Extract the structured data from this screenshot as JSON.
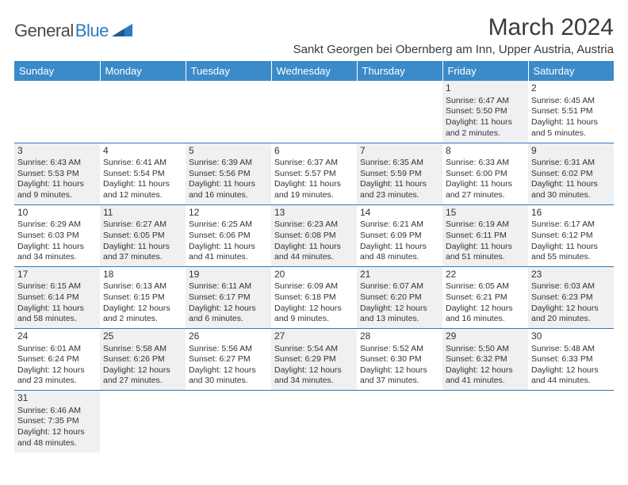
{
  "logo": {
    "part1": "General",
    "part2": "Blue"
  },
  "title": "March 2024",
  "location": "Sankt Georgen bei Obernberg am Inn, Upper Austria, Austria",
  "colors": {
    "header_bg": "#3b8bc9",
    "header_text": "#ffffff",
    "row_border": "#2b7bbf",
    "shade": "#eef0f2",
    "logo_gray": "#4a4a4a",
    "logo_blue": "#2b7bbf"
  },
  "weekdays": [
    "Sunday",
    "Monday",
    "Tuesday",
    "Wednesday",
    "Thursday",
    "Friday",
    "Saturday"
  ],
  "weeks": [
    [
      null,
      null,
      null,
      null,
      null,
      {
        "day": "1",
        "sunrise": "Sunrise: 6:47 AM",
        "sunset": "Sunset: 5:50 PM",
        "daylight": "Daylight: 11 hours and 2 minutes."
      },
      {
        "day": "2",
        "sunrise": "Sunrise: 6:45 AM",
        "sunset": "Sunset: 5:51 PM",
        "daylight": "Daylight: 11 hours and 5 minutes."
      }
    ],
    [
      {
        "day": "3",
        "sunrise": "Sunrise: 6:43 AM",
        "sunset": "Sunset: 5:53 PM",
        "daylight": "Daylight: 11 hours and 9 minutes."
      },
      {
        "day": "4",
        "sunrise": "Sunrise: 6:41 AM",
        "sunset": "Sunset: 5:54 PM",
        "daylight": "Daylight: 11 hours and 12 minutes."
      },
      {
        "day": "5",
        "sunrise": "Sunrise: 6:39 AM",
        "sunset": "Sunset: 5:56 PM",
        "daylight": "Daylight: 11 hours and 16 minutes."
      },
      {
        "day": "6",
        "sunrise": "Sunrise: 6:37 AM",
        "sunset": "Sunset: 5:57 PM",
        "daylight": "Daylight: 11 hours and 19 minutes."
      },
      {
        "day": "7",
        "sunrise": "Sunrise: 6:35 AM",
        "sunset": "Sunset: 5:59 PM",
        "daylight": "Daylight: 11 hours and 23 minutes."
      },
      {
        "day": "8",
        "sunrise": "Sunrise: 6:33 AM",
        "sunset": "Sunset: 6:00 PM",
        "daylight": "Daylight: 11 hours and 27 minutes."
      },
      {
        "day": "9",
        "sunrise": "Sunrise: 6:31 AM",
        "sunset": "Sunset: 6:02 PM",
        "daylight": "Daylight: 11 hours and 30 minutes."
      }
    ],
    [
      {
        "day": "10",
        "sunrise": "Sunrise: 6:29 AM",
        "sunset": "Sunset: 6:03 PM",
        "daylight": "Daylight: 11 hours and 34 minutes."
      },
      {
        "day": "11",
        "sunrise": "Sunrise: 6:27 AM",
        "sunset": "Sunset: 6:05 PM",
        "daylight": "Daylight: 11 hours and 37 minutes."
      },
      {
        "day": "12",
        "sunrise": "Sunrise: 6:25 AM",
        "sunset": "Sunset: 6:06 PM",
        "daylight": "Daylight: 11 hours and 41 minutes."
      },
      {
        "day": "13",
        "sunrise": "Sunrise: 6:23 AM",
        "sunset": "Sunset: 6:08 PM",
        "daylight": "Daylight: 11 hours and 44 minutes."
      },
      {
        "day": "14",
        "sunrise": "Sunrise: 6:21 AM",
        "sunset": "Sunset: 6:09 PM",
        "daylight": "Daylight: 11 hours and 48 minutes."
      },
      {
        "day": "15",
        "sunrise": "Sunrise: 6:19 AM",
        "sunset": "Sunset: 6:11 PM",
        "daylight": "Daylight: 11 hours and 51 minutes."
      },
      {
        "day": "16",
        "sunrise": "Sunrise: 6:17 AM",
        "sunset": "Sunset: 6:12 PM",
        "daylight": "Daylight: 11 hours and 55 minutes."
      }
    ],
    [
      {
        "day": "17",
        "sunrise": "Sunrise: 6:15 AM",
        "sunset": "Sunset: 6:14 PM",
        "daylight": "Daylight: 11 hours and 58 minutes."
      },
      {
        "day": "18",
        "sunrise": "Sunrise: 6:13 AM",
        "sunset": "Sunset: 6:15 PM",
        "daylight": "Daylight: 12 hours and 2 minutes."
      },
      {
        "day": "19",
        "sunrise": "Sunrise: 6:11 AM",
        "sunset": "Sunset: 6:17 PM",
        "daylight": "Daylight: 12 hours and 6 minutes."
      },
      {
        "day": "20",
        "sunrise": "Sunrise: 6:09 AM",
        "sunset": "Sunset: 6:18 PM",
        "daylight": "Daylight: 12 hours and 9 minutes."
      },
      {
        "day": "21",
        "sunrise": "Sunrise: 6:07 AM",
        "sunset": "Sunset: 6:20 PM",
        "daylight": "Daylight: 12 hours and 13 minutes."
      },
      {
        "day": "22",
        "sunrise": "Sunrise: 6:05 AM",
        "sunset": "Sunset: 6:21 PM",
        "daylight": "Daylight: 12 hours and 16 minutes."
      },
      {
        "day": "23",
        "sunrise": "Sunrise: 6:03 AM",
        "sunset": "Sunset: 6:23 PM",
        "daylight": "Daylight: 12 hours and 20 minutes."
      }
    ],
    [
      {
        "day": "24",
        "sunrise": "Sunrise: 6:01 AM",
        "sunset": "Sunset: 6:24 PM",
        "daylight": "Daylight: 12 hours and 23 minutes."
      },
      {
        "day": "25",
        "sunrise": "Sunrise: 5:58 AM",
        "sunset": "Sunset: 6:26 PM",
        "daylight": "Daylight: 12 hours and 27 minutes."
      },
      {
        "day": "26",
        "sunrise": "Sunrise: 5:56 AM",
        "sunset": "Sunset: 6:27 PM",
        "daylight": "Daylight: 12 hours and 30 minutes."
      },
      {
        "day": "27",
        "sunrise": "Sunrise: 5:54 AM",
        "sunset": "Sunset: 6:29 PM",
        "daylight": "Daylight: 12 hours and 34 minutes."
      },
      {
        "day": "28",
        "sunrise": "Sunrise: 5:52 AM",
        "sunset": "Sunset: 6:30 PM",
        "daylight": "Daylight: 12 hours and 37 minutes."
      },
      {
        "day": "29",
        "sunrise": "Sunrise: 5:50 AM",
        "sunset": "Sunset: 6:32 PM",
        "daylight": "Daylight: 12 hours and 41 minutes."
      },
      {
        "day": "30",
        "sunrise": "Sunrise: 5:48 AM",
        "sunset": "Sunset: 6:33 PM",
        "daylight": "Daylight: 12 hours and 44 minutes."
      }
    ],
    [
      {
        "day": "31",
        "sunrise": "Sunrise: 6:46 AM",
        "sunset": "Sunset: 7:35 PM",
        "daylight": "Daylight: 12 hours and 48 minutes."
      },
      null,
      null,
      null,
      null,
      null,
      null
    ]
  ]
}
